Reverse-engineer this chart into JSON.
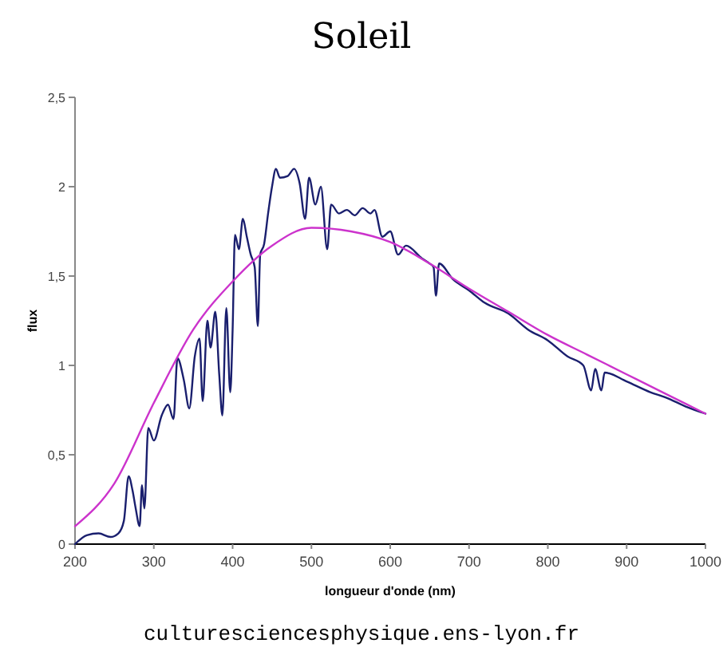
{
  "chart_data": {
    "type": "line",
    "title": "Soleil",
    "xlabel": "longueur d'onde (nm)",
    "ylabel": "flux",
    "xlim": [
      200,
      1000
    ],
    "xticks": [
      200,
      300,
      400,
      500,
      600,
      700,
      800,
      900,
      1000
    ],
    "ylim": [
      0,
      2.5
    ],
    "yticks": [
      0,
      {
        "value": 0.5,
        "label": "0,5"
      },
      1,
      {
        "value": 1.5,
        "label": "1,5"
      },
      2,
      {
        "value": 2.5,
        "label": "2,5"
      }
    ],
    "marker": "none",
    "series": [
      {
        "color": "#1a1f6e",
        "x": [
          200,
          215,
          230,
          245,
          255,
          262,
          268,
          273,
          277,
          282,
          285,
          288,
          293,
          300,
          310,
          318,
          325,
          330,
          338,
          345,
          352,
          358,
          362,
          368,
          372,
          378,
          383,
          387,
          392,
          397,
          400,
          403,
          408,
          413,
          418,
          423,
          428,
          432,
          435,
          440,
          445,
          450,
          455,
          460,
          470,
          478,
          485,
          492,
          497,
          505,
          512,
          520,
          525,
          535,
          545,
          555,
          565,
          575,
          580,
          590,
          600,
          610,
          620,
          640,
          650,
          655,
          658,
          662,
          680,
          700,
          720,
          750,
          775,
          800,
          825,
          845,
          855,
          860,
          868,
          872,
          900,
          930,
          950,
          975,
          1000
        ],
        "values": [
          0.0,
          0.05,
          0.06,
          0.04,
          0.06,
          0.13,
          0.38,
          0.3,
          0.2,
          0.1,
          0.33,
          0.2,
          0.65,
          0.58,
          0.72,
          0.78,
          0.7,
          1.04,
          0.92,
          0.76,
          1.05,
          1.15,
          0.8,
          1.25,
          1.1,
          1.3,
          0.95,
          0.72,
          1.32,
          0.85,
          1.2,
          1.73,
          1.65,
          1.82,
          1.72,
          1.62,
          1.55,
          1.22,
          1.62,
          1.68,
          1.85,
          2.0,
          2.1,
          2.05,
          2.06,
          2.1,
          2.02,
          1.82,
          2.05,
          1.9,
          2.0,
          1.65,
          1.9,
          1.85,
          1.87,
          1.84,
          1.88,
          1.85,
          1.87,
          1.72,
          1.75,
          1.62,
          1.67,
          1.6,
          1.57,
          1.55,
          1.39,
          1.57,
          1.48,
          1.42,
          1.35,
          1.29,
          1.2,
          1.14,
          1.05,
          1.0,
          0.86,
          0.98,
          0.86,
          0.96,
          0.91,
          0.85,
          0.82,
          0.77,
          0.73
        ]
      },
      {
        "color": "#cc33cc",
        "x": [
          200,
          250,
          300,
          350,
          400,
          450,
          500,
          550,
          600,
          650,
          700,
          750,
          800,
          850,
          900,
          950,
          1000
        ],
        "values": [
          0.1,
          0.34,
          0.79,
          1.2,
          1.47,
          1.67,
          1.77,
          1.75,
          1.69,
          1.57,
          1.43,
          1.3,
          1.17,
          1.06,
          0.95,
          0.84,
          0.73
        ]
      }
    ],
    "annotations": [
      "culturesciencesphysique.ens-lyon.fr"
    ]
  }
}
